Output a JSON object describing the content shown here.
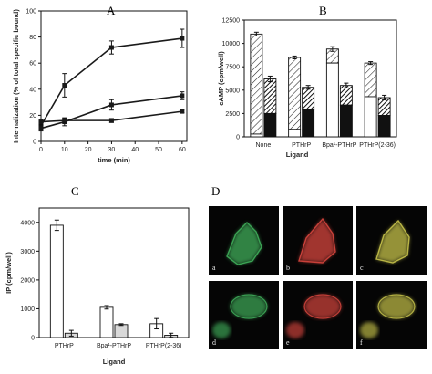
{
  "panels": {
    "a": {
      "letter": "A"
    },
    "b": {
      "letter": "B"
    },
    "c": {
      "letter": "C"
    },
    "d": {
      "letter": "D"
    }
  },
  "chart_data": [
    {
      "id": "A",
      "type": "line",
      "title": "",
      "xlabel": "time (min)",
      "ylabel": "Internalization (% of total specific bound)",
      "xlim": [
        0,
        62
      ],
      "ylim": [
        0,
        100
      ],
      "xticks": [
        0,
        10,
        20,
        30,
        40,
        50,
        60
      ],
      "yticks": [
        0,
        20,
        40,
        60,
        80,
        100
      ],
      "x": [
        0,
        10,
        30,
        60
      ],
      "series": [
        {
          "values": [
            12,
            43,
            72,
            79
          ],
          "errors": [
            3,
            9,
            5,
            7
          ],
          "color": "#1a1a1a"
        },
        {
          "values": [
            10,
            15,
            28,
            35
          ],
          "errors": [
            2,
            3,
            4,
            3
          ],
          "color": "#1a1a1a"
        },
        {
          "values": [
            15,
            16,
            16,
            23
          ],
          "errors": [
            2,
            2,
            1.5,
            1
          ],
          "color": "#1a1a1a"
        }
      ]
    },
    {
      "id": "B",
      "type": "bar",
      "title": "",
      "xlabel": "Ligand",
      "ylabel": "cAMP (cpm/well)",
      "ylim": [
        0,
        12500
      ],
      "yticks": [
        0,
        2500,
        5000,
        7500,
        10000,
        12500
      ],
      "ytick_labels": [
        "0",
        "2500",
        "5000",
        "7500",
        "10000",
        "12500"
      ],
      "categories": [
        "None",
        "PTHrP",
        "Bpa¹-PTHrP",
        "PTHrP(2-36)"
      ],
      "left_bars": [
        {
          "total": 11000,
          "total_err": 200,
          "open_part": 300
        },
        {
          "total": 8500,
          "total_err": 150,
          "open_part": 800
        },
        {
          "total": 9400,
          "total_err": 250,
          "open_part": 7900
        },
        {
          "total": 7900,
          "total_err": 150,
          "open_part": 4300
        }
      ],
      "right_bars": [
        {
          "total": 6200,
          "total_err": 300,
          "dark_part": 2500
        },
        {
          "total": 5300,
          "total_err": 200,
          "dark_part": 2900
        },
        {
          "total": 5500,
          "total_err": 250,
          "dark_part": 3400
        },
        {
          "total": 4200,
          "total_err": 250,
          "dark_part": 2300
        }
      ]
    },
    {
      "id": "C",
      "type": "bar",
      "title": "",
      "xlabel": "Ligand",
      "ylabel": "IP (cpm/well)",
      "ylim": [
        0,
        4500
      ],
      "yticks": [
        0,
        1000,
        2000,
        3000,
        4000
      ],
      "categories": [
        "PTHrP",
        "Bpa¹-PTHrP",
        "PTHrP(2-36)"
      ],
      "series": [
        {
          "values": [
            3900,
            1050,
            480
          ],
          "errors": [
            180,
            60,
            180
          ],
          "fill": "#ffffff"
        },
        {
          "values": [
            150,
            450,
            80
          ],
          "errors": [
            100,
            30,
            70
          ],
          "fill": "#d9d9d9"
        }
      ]
    }
  ],
  "micrographs": {
    "cells": [
      {
        "label": "a",
        "color": "#3fae5a"
      },
      {
        "label": "b",
        "color": "#d6453d"
      },
      {
        "label": "c",
        "color": "#c6c24a"
      },
      {
        "label": "d",
        "color": "#3fae5a"
      },
      {
        "label": "e",
        "color": "#d6453d"
      },
      {
        "label": "f",
        "color": "#c6c24a"
      }
    ]
  }
}
